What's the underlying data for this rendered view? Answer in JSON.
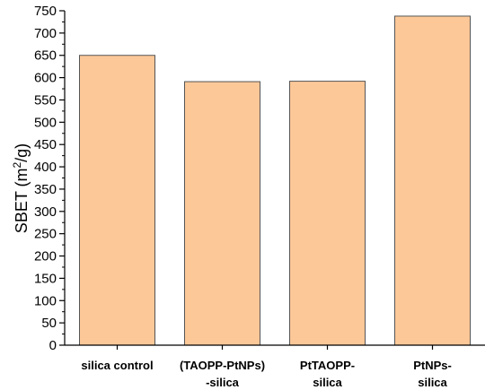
{
  "chart_data": {
    "type": "bar",
    "categories": [
      [
        "silica control"
      ],
      [
        "(TAOPP-PtNPs)",
        "-silica"
      ],
      [
        "PtTAOPP-",
        "silica"
      ],
      [
        "PtNPs-",
        "silica"
      ]
    ],
    "values": [
      650,
      591,
      592,
      738
    ],
    "title": "",
    "xlabel": "",
    "ylabel": "SBET (m2/g)",
    "ylabel_parts": {
      "main": "SBET (m",
      "sup": "2",
      "tail": "/g)"
    },
    "ylim": [
      0,
      750
    ],
    "yticks": [
      0,
      50,
      100,
      150,
      200,
      250,
      300,
      350,
      400,
      450,
      500,
      550,
      600,
      650,
      700,
      750
    ],
    "minor_ticks_per_major": 2,
    "grid": false,
    "bar_color": "#FCC898",
    "bar_edge_color": "#555555"
  }
}
